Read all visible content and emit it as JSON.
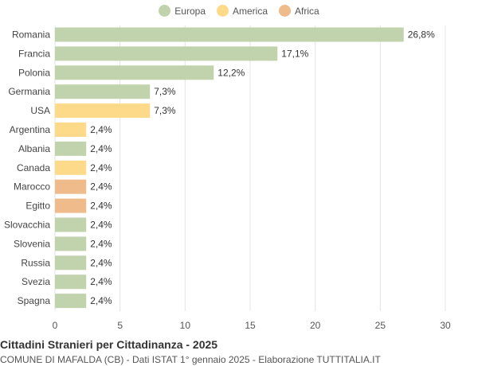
{
  "chart_data": {
    "type": "bar",
    "orientation": "horizontal",
    "title": "Cittadini Stranieri per Cittadinanza - 2025",
    "subtitle": "COMUNE DI MAFALDA (CB) - Dati ISTAT 1° gennaio 2025 - Elaborazione TUTTITALIA.IT",
    "xlim": [
      0,
      30
    ],
    "xticks": [
      "0",
      "5",
      "10",
      "15",
      "20",
      "25",
      "30"
    ],
    "grid": true,
    "legend_position": "top",
    "legend": [
      {
        "name": "Europa",
        "color": "#c0d3ad"
      },
      {
        "name": "America",
        "color": "#fdd98a"
      },
      {
        "name": "Africa",
        "color": "#f0bb8a"
      }
    ],
    "categories": [
      "Romania",
      "Francia",
      "Polonia",
      "Germania",
      "USA",
      "Argentina",
      "Albania",
      "Canada",
      "Marocco",
      "Egitto",
      "Slovacchia",
      "Slovenia",
      "Russia",
      "Svezia",
      "Spagna"
    ],
    "values": [
      26.8,
      17.1,
      12.2,
      7.3,
      7.3,
      2.4,
      2.4,
      2.4,
      2.4,
      2.4,
      2.4,
      2.4,
      2.4,
      2.4,
      2.4
    ],
    "labels": [
      "26,8%",
      "17,1%",
      "12,2%",
      "7,3%",
      "7,3%",
      "2,4%",
      "2,4%",
      "2,4%",
      "2,4%",
      "2,4%",
      "2,4%",
      "2,4%",
      "2,4%",
      "2,4%",
      "2,4%"
    ],
    "groups": [
      "Europa",
      "Europa",
      "Europa",
      "Europa",
      "America",
      "America",
      "Europa",
      "America",
      "Africa",
      "Africa",
      "Europa",
      "Europa",
      "Europa",
      "Europa",
      "Europa"
    ]
  }
}
